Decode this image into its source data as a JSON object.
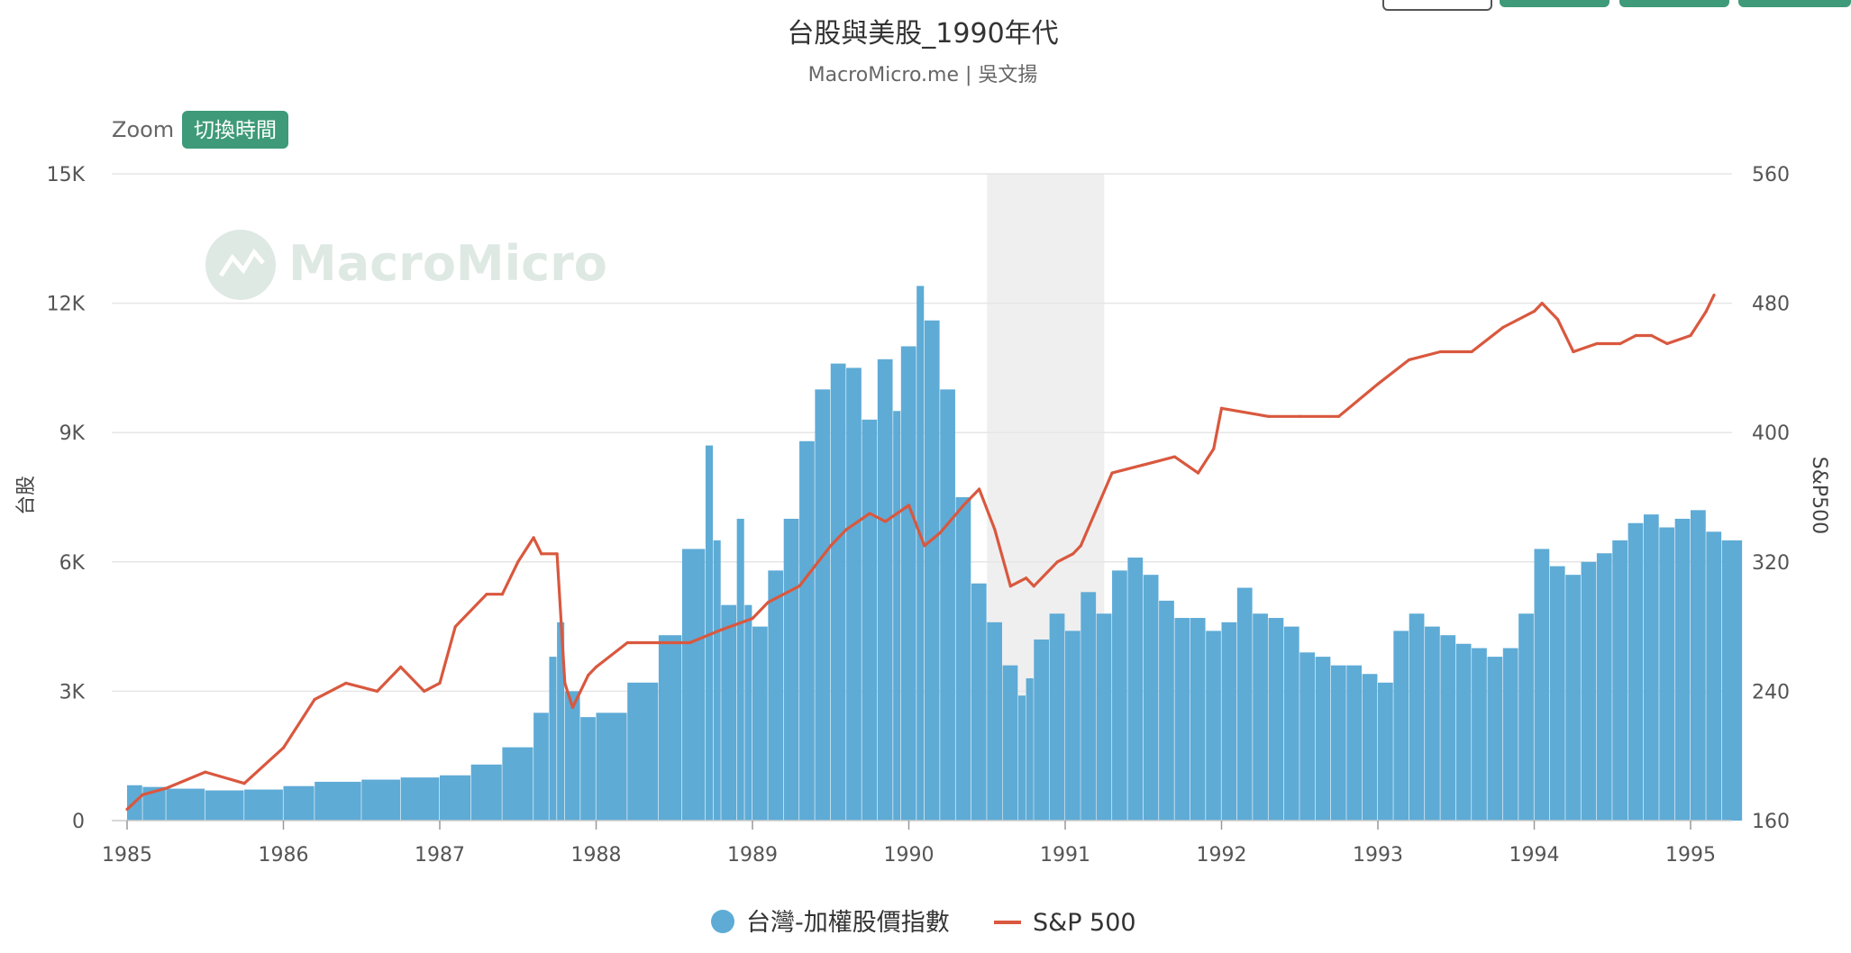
{
  "header": {
    "title": "台股與美股_1990年代",
    "subtitle": "MacroMicro.me | 吳文揚",
    "zoom_label": "Zoom",
    "zoom_button": "切換時間",
    "watermark": "MacroMicro"
  },
  "colors": {
    "bars": "#5eabd6",
    "line": "#d9583e",
    "shade": "#efefef",
    "accent": "#3e9a78",
    "grid": "#e6e6e6",
    "watermark": "#dfe9e4"
  },
  "icons": {
    "watermark_logo": "macromicro-logo-icon"
  },
  "chart_data": {
    "type": "bar+line",
    "title": "台股與美股_1990年代",
    "subtitle": "MacroMicro.me | 吳文揚",
    "x": {
      "label": "",
      "range": [
        1985.0,
        1995.35
      ],
      "ticks": [
        "1985",
        "1986",
        "1987",
        "1988",
        "1989",
        "1990",
        "1991",
        "1992",
        "1993",
        "1994",
        "1995"
      ]
    },
    "y_left": {
      "label": "台股",
      "range": [
        0,
        15000
      ],
      "tick_labels": [
        "0",
        "3K",
        "6K",
        "9K",
        "12K",
        "15K"
      ],
      "tick_values": [
        0,
        3000,
        6000,
        9000,
        12000,
        15000
      ]
    },
    "y_right": {
      "label": "S&P500",
      "range": [
        160,
        560
      ],
      "tick_labels": [
        "160",
        "240",
        "320",
        "400",
        "480",
        "560"
      ],
      "tick_values": [
        160,
        240,
        320,
        400,
        480,
        560
      ]
    },
    "shaded_period": [
      1990.5,
      1991.25
    ],
    "legend_position": "bottom-center",
    "series": [
      {
        "name": "台灣-加權股價指數",
        "type": "bar",
        "axis": "left",
        "x": [
          1985.0,
          1985.1,
          1985.25,
          1985.5,
          1985.75,
          1986.0,
          1986.2,
          1986.5,
          1986.75,
          1987.0,
          1987.2,
          1987.4,
          1987.6,
          1987.7,
          1987.75,
          1987.8,
          1987.9,
          1988.0,
          1988.2,
          1988.4,
          1988.55,
          1988.7,
          1988.75,
          1988.8,
          1988.9,
          1988.95,
          1989.0,
          1989.1,
          1989.2,
          1989.3,
          1989.4,
          1989.5,
          1989.6,
          1989.7,
          1989.8,
          1989.9,
          1989.95,
          1990.05,
          1990.1,
          1990.2,
          1990.3,
          1990.4,
          1990.5,
          1990.6,
          1990.7,
          1990.75,
          1990.8,
          1990.9,
          1991.0,
          1991.1,
          1991.2,
          1991.3,
          1991.4,
          1991.5,
          1991.6,
          1991.7,
          1991.8,
          1991.9,
          1992.0,
          1992.1,
          1992.2,
          1992.3,
          1992.4,
          1992.5,
          1992.6,
          1992.7,
          1992.8,
          1992.9,
          1993.0,
          1993.1,
          1993.2,
          1993.3,
          1993.4,
          1993.5,
          1993.6,
          1993.7,
          1993.8,
          1993.9,
          1994.0,
          1994.1,
          1994.2,
          1994.3,
          1994.4,
          1994.5,
          1994.6,
          1994.7,
          1994.8,
          1994.9,
          1995.0,
          1995.1,
          1995.2
        ],
        "values": [
          820,
          780,
          740,
          700,
          720,
          800,
          900,
          950,
          1000,
          1050,
          1300,
          1700,
          2500,
          3800,
          4600,
          3000,
          2400,
          2500,
          3200,
          4300,
          6300,
          8700,
          6500,
          5000,
          7000,
          5000,
          4500,
          5800,
          7000,
          8800,
          10000,
          10600,
          10500,
          9300,
          10700,
          9500,
          11000,
          12400,
          11600,
          10000,
          7500,
          5500,
          4600,
          3600,
          2900,
          3300,
          4200,
          4800,
          4400,
          5300,
          4800,
          5800,
          6100,
          5700,
          5100,
          4700,
          4700,
          4400,
          4600,
          5400,
          4800,
          4700,
          4500,
          3900,
          3800,
          3600,
          3600,
          3400,
          3200,
          4400,
          4800,
          4500,
          4300,
          4100,
          4000,
          3800,
          4000,
          4800,
          6300,
          5900,
          5700,
          6000,
          6200,
          6500,
          6900,
          7100,
          6800,
          7000,
          7200,
          6700,
          6500
        ]
      },
      {
        "name": "S&P 500",
        "type": "line",
        "axis": "right",
        "x": [
          1985.0,
          1985.1,
          1985.25,
          1985.5,
          1985.75,
          1986.0,
          1986.2,
          1986.4,
          1986.6,
          1986.75,
          1986.9,
          1987.0,
          1987.1,
          1987.3,
          1987.4,
          1987.5,
          1987.6,
          1987.65,
          1987.75,
          1987.8,
          1987.85,
          1987.95,
          1988.0,
          1988.2,
          1988.4,
          1988.6,
          1988.8,
          1989.0,
          1989.1,
          1989.3,
          1989.5,
          1989.6,
          1989.75,
          1989.85,
          1990.0,
          1990.1,
          1990.2,
          1990.35,
          1990.45,
          1990.55,
          1990.65,
          1990.75,
          1990.8,
          1990.95,
          1991.05,
          1991.1,
          1991.3,
          1991.5,
          1991.7,
          1991.85,
          1991.95,
          1992.0,
          1992.3,
          1992.5,
          1992.75,
          1993.0,
          1993.2,
          1993.4,
          1993.6,
          1993.8,
          1994.0,
          1994.05,
          1994.15,
          1994.25,
          1994.4,
          1994.55,
          1994.65,
          1994.75,
          1994.85,
          1995.0,
          1995.1,
          1995.15
        ],
        "values": [
          167,
          176,
          180,
          190,
          183,
          205,
          235,
          245,
          240,
          255,
          240,
          245,
          280,
          300,
          300,
          320,
          335,
          325,
          325,
          245,
          230,
          250,
          255,
          270,
          270,
          270,
          278,
          285,
          295,
          305,
          330,
          340,
          350,
          345,
          355,
          330,
          338,
          355,
          365,
          340,
          305,
          310,
          305,
          320,
          325,
          330,
          375,
          380,
          385,
          375,
          390,
          415,
          410,
          410,
          410,
          430,
          445,
          450,
          450,
          465,
          475,
          480,
          470,
          450,
          455,
          455,
          460,
          460,
          455,
          460,
          475,
          485
        ]
      }
    ]
  }
}
